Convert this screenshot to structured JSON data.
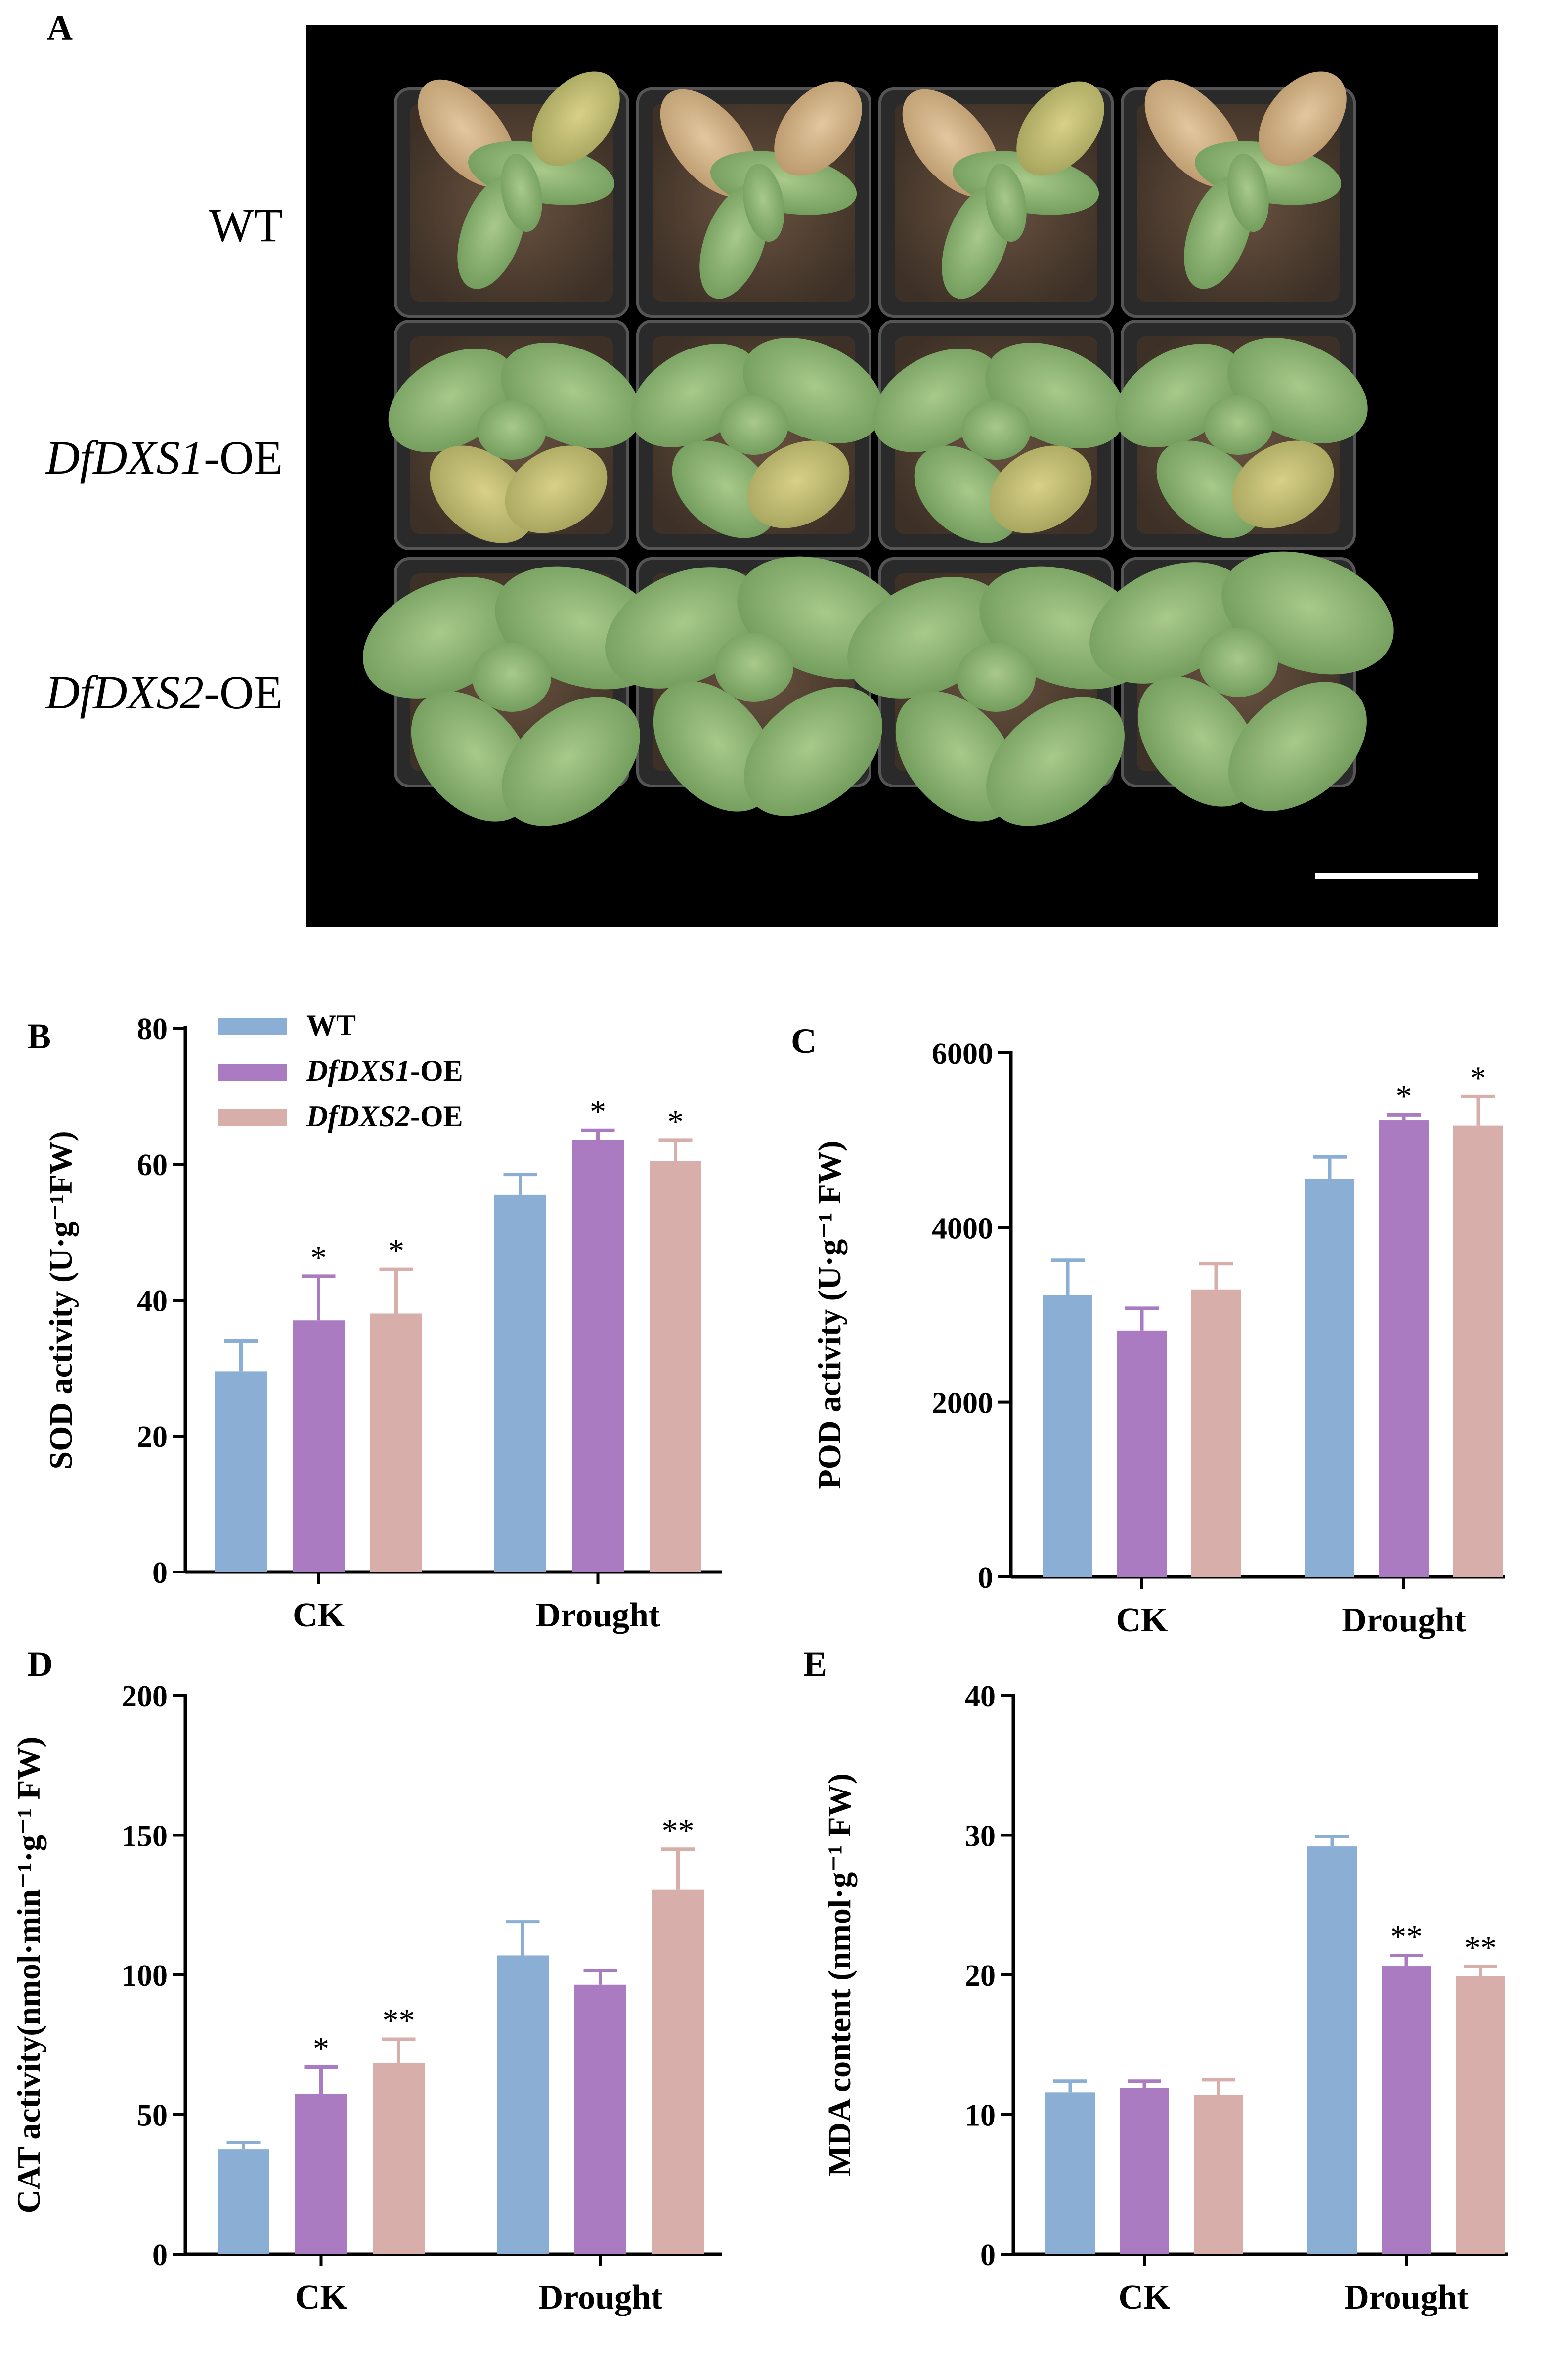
{
  "panel_labels": [
    "A",
    "B",
    "C",
    "D",
    "E"
  ],
  "photo": {
    "row_labels": [
      {
        "italic": "",
        "plain": "WT"
      },
      {
        "italic": "DfDXS1",
        "plain": "-OE"
      },
      {
        "italic": "DfDXS2",
        "plain": "-OE"
      }
    ]
  },
  "colors": {
    "WT": "#8aaed4",
    "DfDXS1-OE": "#aa7bc1",
    "DfDXS2-OE": "#d8aeaa"
  },
  "chart_data": [
    {
      "panel": "B",
      "type": "bar",
      "categories": [
        "CK",
        "Drought"
      ],
      "ylabel": "SOD activity (U·g⁻¹FW)",
      "ylim": [
        0,
        80
      ],
      "yticks": [
        0,
        20,
        40,
        60,
        80
      ],
      "legend": {
        "placement": "top-left",
        "entries": [
          "WT",
          "DfDXS1-OE",
          "DfDXS2-OE"
        ]
      },
      "series": [
        {
          "name": "WT",
          "values": [
            29.5,
            55.5
          ],
          "errors": [
            4.5,
            3.0
          ],
          "sig": [
            "",
            ""
          ]
        },
        {
          "name": "DfDXS1-OE",
          "values": [
            37.0,
            63.5
          ],
          "errors": [
            6.5,
            1.5
          ],
          "sig": [
            "*",
            "*"
          ]
        },
        {
          "name": "DfDXS2-OE",
          "values": [
            38.0,
            60.5
          ],
          "errors": [
            6.5,
            3.0
          ],
          "sig": [
            "*",
            "*"
          ]
        }
      ]
    },
    {
      "panel": "C",
      "type": "bar",
      "categories": [
        "CK",
        "Drought"
      ],
      "ylabel": "POD activity (U·g⁻¹ FW)",
      "ylim": [
        0,
        6000
      ],
      "yticks": [
        0,
        2000,
        4000,
        6000
      ],
      "series": [
        {
          "name": "WT",
          "values": [
            3230,
            4560
          ],
          "errors": [
            400,
            250
          ],
          "sig": [
            "",
            ""
          ]
        },
        {
          "name": "DfDXS1-OE",
          "values": [
            2820,
            5230
          ],
          "errors": [
            260,
            60
          ],
          "sig": [
            "",
            "*"
          ]
        },
        {
          "name": "DfDXS2-OE",
          "values": [
            3290,
            5170
          ],
          "errors": [
            300,
            330
          ],
          "sig": [
            "",
            "*"
          ]
        }
      ]
    },
    {
      "panel": "D",
      "type": "bar",
      "categories": [
        "CK",
        "Drought"
      ],
      "ylabel": "CAT activity(nmol·min⁻¹·g⁻¹ FW)",
      "ylim": [
        0,
        200
      ],
      "yticks": [
        0,
        50,
        100,
        150,
        200
      ],
      "series": [
        {
          "name": "WT",
          "values": [
            37.5,
            107
          ],
          "errors": [
            2.5,
            12
          ],
          "sig": [
            "",
            ""
          ]
        },
        {
          "name": "DfDXS1-OE",
          "values": [
            57.5,
            96.5
          ],
          "errors": [
            9.5,
            5
          ],
          "sig": [
            "*",
            ""
          ]
        },
        {
          "name": "DfDXS2-OE",
          "values": [
            68.5,
            130.5
          ],
          "errors": [
            8.5,
            14.5
          ],
          "sig": [
            "**",
            "**"
          ]
        }
      ]
    },
    {
      "panel": "E",
      "type": "bar",
      "categories": [
        "CK",
        "Drought"
      ],
      "ylabel": "MDA content (nmol·g⁻¹ FW)",
      "ylim": [
        0,
        40
      ],
      "yticks": [
        0,
        10,
        20,
        30,
        40
      ],
      "series": [
        {
          "name": "WT",
          "values": [
            11.6,
            29.2
          ],
          "errors": [
            0.8,
            0.7
          ],
          "sig": [
            "",
            ""
          ]
        },
        {
          "name": "DfDXS1-OE",
          "values": [
            11.9,
            20.6
          ],
          "errors": [
            0.5,
            0.8
          ],
          "sig": [
            "",
            "**"
          ]
        },
        {
          "name": "DfDXS2-OE",
          "values": [
            11.4,
            19.9
          ],
          "errors": [
            1.1,
            0.7
          ],
          "sig": [
            "",
            "**"
          ]
        }
      ]
    }
  ]
}
